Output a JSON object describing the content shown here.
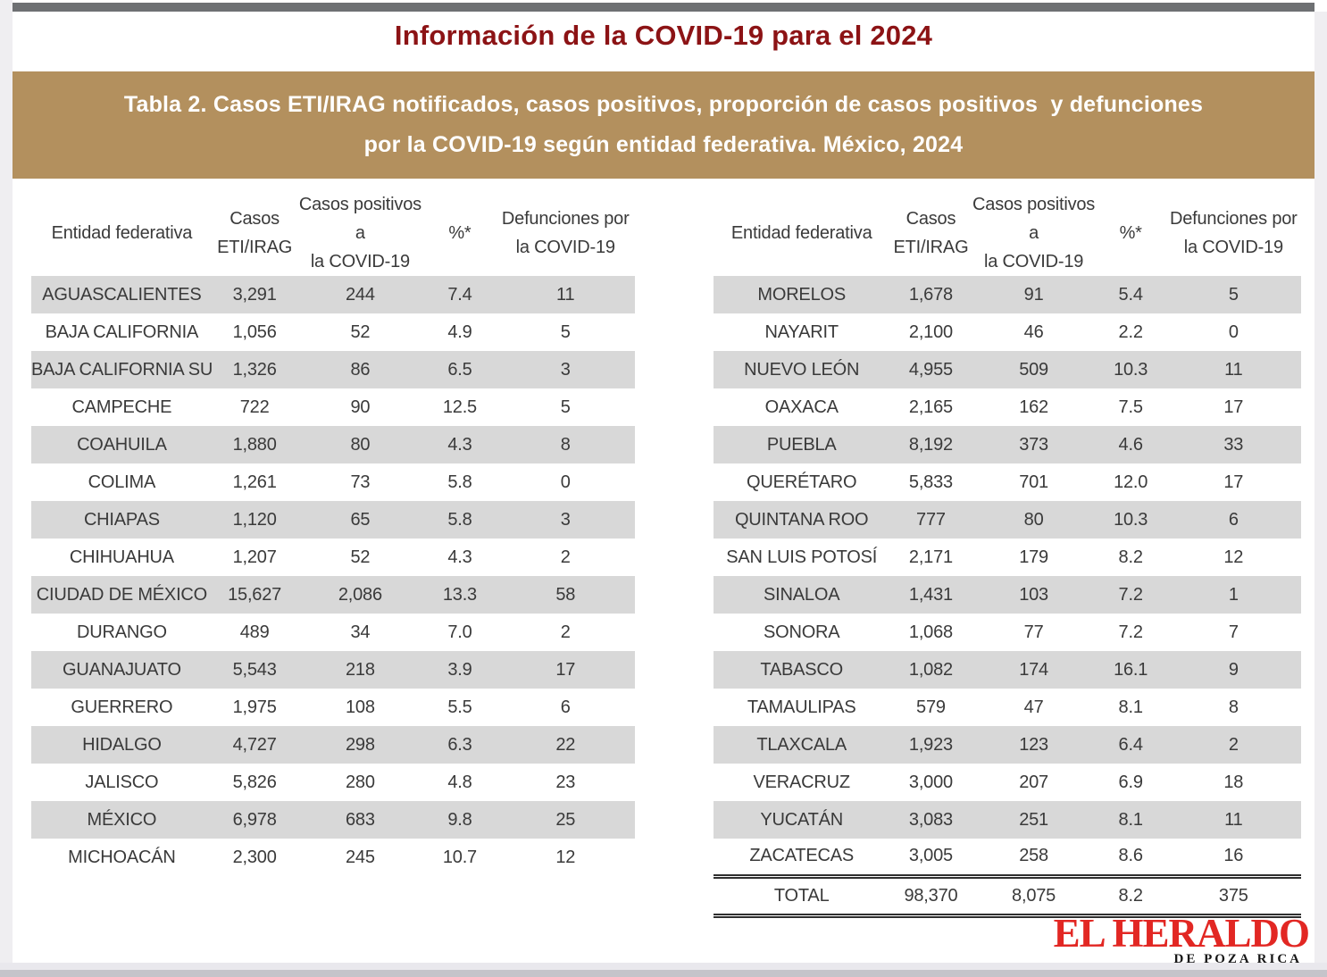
{
  "page_title": "Información de la COVID-19 para el 2024",
  "banner": {
    "line1": "Tabla 2. Casos ETI/IRAG notificados, casos positivos, proporción de casos positivos  y defunciones",
    "line2": "por la COVID-19 según entidad federativa. México, 2024"
  },
  "headers": {
    "entity": "Entidad federativa",
    "cases_line1": "Casos",
    "cases_line2": "ETI/IRAG",
    "positives_line1": "Casos positivos a",
    "positives_line2": "la COVID-19",
    "pct": "%*",
    "deaths_line1": "Defunciones por",
    "deaths_line2": "la COVID-19"
  },
  "left_table": {
    "rows": [
      {
        "entity": "AGUASCALIENTES",
        "cases": "3,291",
        "positives": "244",
        "pct": "7.4",
        "deaths": "11"
      },
      {
        "entity": "BAJA CALIFORNIA",
        "cases": "1,056",
        "positives": "52",
        "pct": "4.9",
        "deaths": "5"
      },
      {
        "entity": "BAJA CALIFORNIA SUR",
        "cases": "1,326",
        "positives": "86",
        "pct": "6.5",
        "deaths": "3"
      },
      {
        "entity": "CAMPECHE",
        "cases": "722",
        "positives": "90",
        "pct": "12.5",
        "deaths": "5"
      },
      {
        "entity": "COAHUILA",
        "cases": "1,880",
        "positives": "80",
        "pct": "4.3",
        "deaths": "8"
      },
      {
        "entity": "COLIMA",
        "cases": "1,261",
        "positives": "73",
        "pct": "5.8",
        "deaths": "0"
      },
      {
        "entity": "CHIAPAS",
        "cases": "1,120",
        "positives": "65",
        "pct": "5.8",
        "deaths": "3"
      },
      {
        "entity": "CHIHUAHUA",
        "cases": "1,207",
        "positives": "52",
        "pct": "4.3",
        "deaths": "2"
      },
      {
        "entity": "CIUDAD DE MÉXICO",
        "cases": "15,627",
        "positives": "2,086",
        "pct": "13.3",
        "deaths": "58"
      },
      {
        "entity": "DURANGO",
        "cases": "489",
        "positives": "34",
        "pct": "7.0",
        "deaths": "2"
      },
      {
        "entity": "GUANAJUATO",
        "cases": "5,543",
        "positives": "218",
        "pct": "3.9",
        "deaths": "17"
      },
      {
        "entity": "GUERRERO",
        "cases": "1,975",
        "positives": "108",
        "pct": "5.5",
        "deaths": "6"
      },
      {
        "entity": "HIDALGO",
        "cases": "4,727",
        "positives": "298",
        "pct": "6.3",
        "deaths": "22"
      },
      {
        "entity": "JALISCO",
        "cases": "5,826",
        "positives": "280",
        "pct": "4.8",
        "deaths": "23"
      },
      {
        "entity": "MÉXICO",
        "cases": "6,978",
        "positives": "683",
        "pct": "9.8",
        "deaths": "25"
      },
      {
        "entity": "MICHOACÁN",
        "cases": "2,300",
        "positives": "245",
        "pct": "10.7",
        "deaths": "12"
      }
    ]
  },
  "right_table": {
    "rows": [
      {
        "entity": "MORELOS",
        "cases": "1,678",
        "positives": "91",
        "pct": "5.4",
        "deaths": "5"
      },
      {
        "entity": "NAYARIT",
        "cases": "2,100",
        "positives": "46",
        "pct": "2.2",
        "deaths": "0"
      },
      {
        "entity": "NUEVO LEÓN",
        "cases": "4,955",
        "positives": "509",
        "pct": "10.3",
        "deaths": "11"
      },
      {
        "entity": "OAXACA",
        "cases": "2,165",
        "positives": "162",
        "pct": "7.5",
        "deaths": "17"
      },
      {
        "entity": "PUEBLA",
        "cases": "8,192",
        "positives": "373",
        "pct": "4.6",
        "deaths": "33"
      },
      {
        "entity": "QUERÉTARO",
        "cases": "5,833",
        "positives": "701",
        "pct": "12.0",
        "deaths": "17"
      },
      {
        "entity": "QUINTANA ROO",
        "cases": "777",
        "positives": "80",
        "pct": "10.3",
        "deaths": "6"
      },
      {
        "entity": "SAN LUIS POTOSÍ",
        "cases": "2,171",
        "positives": "179",
        "pct": "8.2",
        "deaths": "12"
      },
      {
        "entity": "SINALOA",
        "cases": "1,431",
        "positives": "103",
        "pct": "7.2",
        "deaths": "1"
      },
      {
        "entity": "SONORA",
        "cases": "1,068",
        "positives": "77",
        "pct": "7.2",
        "deaths": "7"
      },
      {
        "entity": "TABASCO",
        "cases": "1,082",
        "positives": "174",
        "pct": "16.1",
        "deaths": "9"
      },
      {
        "entity": "TAMAULIPAS",
        "cases": "579",
        "positives": "47",
        "pct": "8.1",
        "deaths": "8"
      },
      {
        "entity": "TLAXCALA",
        "cases": "1,923",
        "positives": "123",
        "pct": "6.4",
        "deaths": "2"
      },
      {
        "entity": "VERACRUZ",
        "cases": "3,000",
        "positives": "207",
        "pct": "6.9",
        "deaths": "18"
      },
      {
        "entity": "YUCATÁN",
        "cases": "3,083",
        "positives": "251",
        "pct": "8.1",
        "deaths": "11"
      },
      {
        "entity": "ZACATECAS",
        "cases": "3,005",
        "positives": "258",
        "pct": "8.6",
        "deaths": "16"
      }
    ],
    "total": {
      "entity": "TOTAL",
      "cases": "98,370",
      "positives": "8,075",
      "pct": "8.2",
      "deaths": "375"
    }
  },
  "logo": {
    "line1": "EL HERALDO",
    "line2": "DE POZA RICA"
  },
  "colors": {
    "title_red": "#8c1315",
    "banner_gold": "#b3905e",
    "row_stripe_gray": "#d8d8d8",
    "text_gray": "#3a3a3a",
    "logo_red": "#e22723",
    "topbar_gray": "#6e7073",
    "frame_gray": "#efeef1"
  }
}
